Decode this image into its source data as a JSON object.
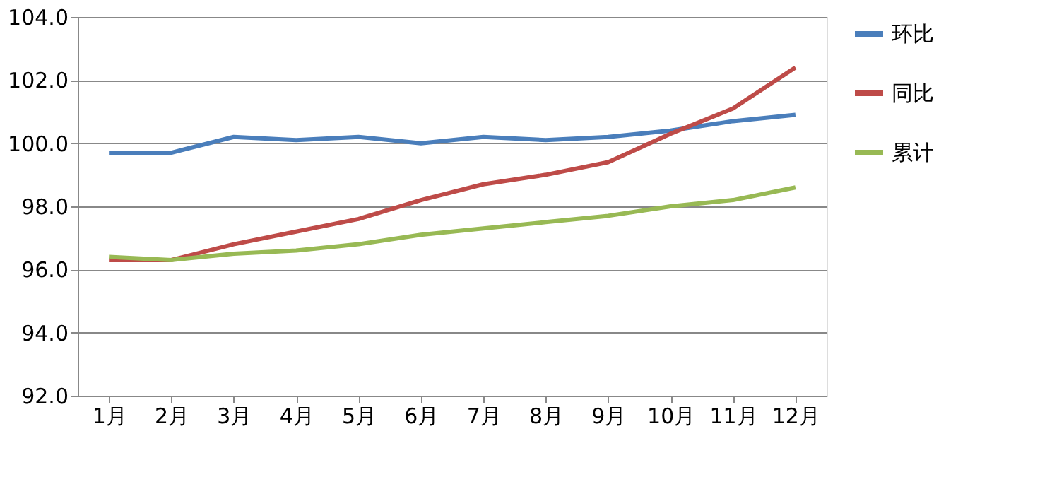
{
  "chart_data": {
    "type": "line",
    "categories": [
      "1月",
      "2月",
      "3月",
      "4月",
      "5月",
      "6月",
      "7月",
      "8月",
      "9月",
      "10月",
      "11月",
      "12月"
    ],
    "series": [
      {
        "name": "环比",
        "color": "#4a7ebb",
        "values": [
          99.7,
          99.7,
          100.2,
          100.1,
          100.2,
          100.0,
          100.2,
          100.1,
          100.2,
          100.4,
          100.7,
          100.9
        ]
      },
      {
        "name": "同比",
        "color": "#be4b48",
        "values": [
          96.3,
          96.3,
          96.8,
          97.2,
          97.6,
          98.2,
          98.7,
          99.0,
          99.4,
          100.3,
          101.1,
          102.4
        ]
      },
      {
        "name": "累计",
        "color": "#98b954",
        "values": [
          96.4,
          96.3,
          96.5,
          96.6,
          96.8,
          97.1,
          97.3,
          97.5,
          97.7,
          98.0,
          98.2,
          98.6
        ]
      }
    ],
    "ylim": [
      92,
      104
    ],
    "yticks": [
      {
        "value": 92,
        "label": "92.0"
      },
      {
        "value": 94,
        "label": "94.0"
      },
      {
        "value": 96,
        "label": "96.0"
      },
      {
        "value": 98,
        "label": "98.0"
      },
      {
        "value": 100,
        "label": "100.0"
      },
      {
        "value": 102,
        "label": "102.0"
      },
      {
        "value": 104,
        "label": "104.0"
      }
    ],
    "grid": "y",
    "legend": "right",
    "marker": "none",
    "line_style": "solid"
  }
}
